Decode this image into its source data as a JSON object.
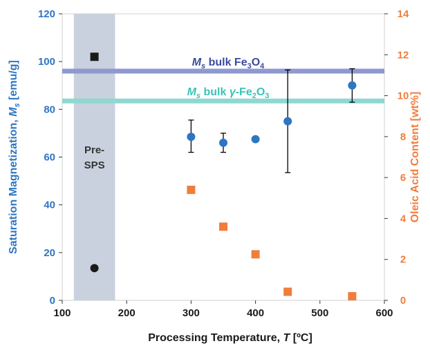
{
  "chart_data": {
    "type": "scatter",
    "xlabel": "Processing Temperature, ",
    "xlabel_var": "T",
    "xlabel_unit": " [ºC]",
    "ylabel_left": "Saturation Magnetization, ",
    "ylabel_left_var": "M",
    "ylabel_left_sub": "s",
    "ylabel_left_unit": " [emu/g]",
    "ylabel_right": "Oleic Acid Content [wt%]",
    "xlim": [
      100,
      600
    ],
    "ylim_left": [
      0,
      120
    ],
    "ylim_right": [
      0,
      14
    ],
    "x_ticks": [
      "100",
      "200",
      "300",
      "400",
      "500",
      "600"
    ],
    "y_left_ticks": [
      "0",
      "20",
      "40",
      "60",
      "80",
      "100",
      "120"
    ],
    "y_right_ticks": [
      "0",
      "2",
      "4",
      "6",
      "8",
      "10",
      "12",
      "14"
    ],
    "grid": false,
    "shaded_region": {
      "x_range": [
        118,
        182
      ],
      "label_line1": "Pre-",
      "label_line2": "SPS",
      "color": "#c9d1df"
    },
    "reference_lines": [
      {
        "value": 96,
        "axis": "left",
        "label_var": "M",
        "label_sub": "s",
        "label_text": " bulk Fe",
        "label_f1": "3",
        "label_mid": "O",
        "label_f2": "4",
        "label_end": "",
        "color": "#8e99d0",
        "text_color": "#3b4aa0"
      },
      {
        "value": 83.5,
        "axis": "left",
        "label_var": "M",
        "label_sub": "s",
        "label_text": " bulk ",
        "label_greek": "γ",
        "label_dash": "-Fe",
        "label_f1": "2",
        "label_mid": "O",
        "label_f2": "3",
        "label_end": "",
        "color": "#8ed8d0",
        "text_color": "#3cc2b6"
      }
    ],
    "series": [
      {
        "axis": "left",
        "marker": "circle",
        "color": "#2e75c2",
        "points": [
          {
            "x": 300,
            "y": 68.5,
            "err_low": 62,
            "err_high": 75.5
          },
          {
            "x": 350,
            "y": 66,
            "err_low": 62,
            "err_high": 70
          },
          {
            "x": 400,
            "y": 67.5
          },
          {
            "x": 450,
            "y": 75,
            "err_low": 53.5,
            "err_high": 96.5
          },
          {
            "x": 550,
            "y": 90,
            "err_low": 83,
            "err_high": 97
          }
        ]
      },
      {
        "axis": "right",
        "marker": "square",
        "color": "#f07d3c",
        "points": [
          {
            "x": 300,
            "y": 5.4
          },
          {
            "x": 350,
            "y": 3.6
          },
          {
            "x": 400,
            "y": 2.25
          },
          {
            "x": 450,
            "y": 0.42
          },
          {
            "x": 550,
            "y": 0.2
          }
        ]
      },
      {
        "axis": "left",
        "marker": "circle",
        "color": "#1a1a1a",
        "points": [
          {
            "x": 150,
            "y": 13.5
          }
        ]
      },
      {
        "axis": "right",
        "marker": "square",
        "color": "#1a1a1a",
        "points": [
          {
            "x": 150,
            "y": 11.9
          }
        ]
      }
    ],
    "colors": {
      "left_axis": "#2e75c2",
      "right_axis": "#f07d3c",
      "x_axis": "#1a1a1a"
    }
  }
}
